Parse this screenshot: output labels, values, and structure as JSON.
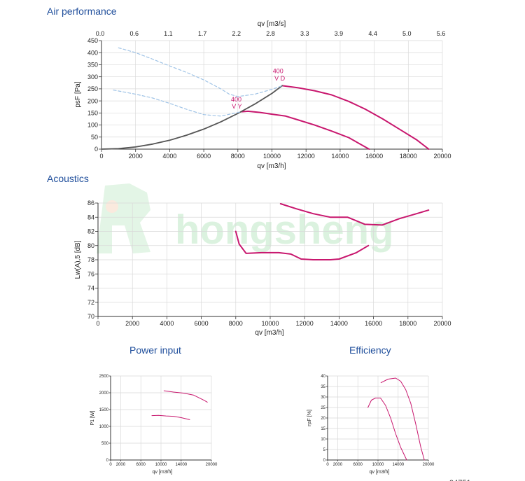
{
  "sections": {
    "air": "Air performance",
    "acoustics": "Acoustics",
    "power": "Power input",
    "efficiency": "Efficiency"
  },
  "colors": {
    "curve": "#c8176e",
    "system": "#555555",
    "dashed": "#9fc3e6",
    "grid": "#d9d9d9",
    "title": "#1f4e9b",
    "watermark": "#bfe8c5"
  },
  "watermark": "hongsheng",
  "footer_partial": "94751",
  "chart_data": [
    {
      "id": "air",
      "type": "line",
      "title": "Air performance",
      "xlabel": "qv [m3/h]",
      "ylabel": "psF [Pa]",
      "x2label": "qv [m3/s]",
      "xlim": [
        0,
        20000
      ],
      "ylim": [
        0,
        450
      ],
      "xticks": [
        0,
        2000,
        4000,
        6000,
        8000,
        10000,
        12000,
        14000,
        16000,
        18000,
        20000
      ],
      "yticks": [
        0,
        50,
        100,
        150,
        200,
        250,
        300,
        350,
        400,
        450
      ],
      "x2ticks": [
        "0.0",
        "0.6",
        "1.1",
        "1.7",
        "2.2",
        "2.8",
        "3.3",
        "3.9",
        "4.4",
        "5.0",
        "5.6"
      ],
      "grid": true,
      "annotations": [
        {
          "text": "400",
          "x": 10050,
          "y": 315
        },
        {
          "text": "V D",
          "x": 10150,
          "y": 285
        },
        {
          "text": "400",
          "x": 7600,
          "y": 198
        },
        {
          "text": "V Y",
          "x": 7650,
          "y": 168
        }
      ],
      "series": [
        {
          "id": "vd",
          "style": "solid",
          "x": [
            10600,
            11500,
            12500,
            13500,
            14500,
            15500,
            16500,
            17500,
            18500,
            19200
          ],
          "y": [
            263,
            255,
            242,
            225,
            198,
            165,
            125,
            82,
            38,
            0
          ]
        },
        {
          "id": "vy",
          "style": "solid",
          "x": [
            8200,
            8600,
            9300,
            10000,
            10800,
            11500,
            12500,
            13500,
            14500,
            15700
          ],
          "y": [
            155,
            157,
            152,
            145,
            137,
            122,
            100,
            75,
            48,
            0
          ]
        },
        {
          "id": "system",
          "style": "system",
          "x": [
            0,
            1000,
            2000,
            3000,
            4000,
            5000,
            6000,
            7000,
            8000,
            9000,
            10000,
            10600
          ],
          "y": [
            0,
            2,
            9,
            21,
            37,
            58,
            83,
            113,
            148,
            187,
            231,
            263
          ]
        },
        {
          "id": "d1",
          "style": "dashed",
          "x": [
            1000,
            2000,
            3000,
            4000,
            5000,
            6000,
            7000,
            7500,
            8000,
            9000,
            10000,
            10600
          ],
          "y": [
            420,
            400,
            373,
            345,
            318,
            287,
            250,
            228,
            218,
            228,
            248,
            263
          ]
        },
        {
          "id": "d2",
          "style": "dashed",
          "x": [
            700,
            2000,
            3000,
            4000,
            5000,
            6000,
            7000,
            8200
          ],
          "y": [
            245,
            228,
            212,
            190,
            165,
            143,
            137,
            155
          ]
        }
      ]
    },
    {
      "id": "acoustics",
      "type": "line",
      "title": "Acoustics",
      "xlabel": "qv [m3/h]",
      "ylabel": "Lw(A),5 [dB]",
      "xlim": [
        0,
        20000
      ],
      "ylim": [
        70,
        86
      ],
      "xticks": [
        0,
        2000,
        4000,
        6000,
        8000,
        10000,
        12000,
        14000,
        16000,
        18000,
        20000
      ],
      "yticks": [
        70,
        72,
        74,
        76,
        78,
        80,
        82,
        84,
        86
      ],
      "grid": true,
      "series": [
        {
          "id": "upper",
          "style": "solid",
          "x": [
            10600,
            11500,
            12500,
            13500,
            14500,
            15500,
            16500,
            17500,
            18500,
            19200
          ],
          "y": [
            85.9,
            85.2,
            84.5,
            84,
            84,
            83,
            82.9,
            83.8,
            84.5,
            85
          ]
        },
        {
          "id": "lower",
          "style": "solid",
          "x": [
            8000,
            8200,
            8600,
            9500,
            10500,
            11200,
            11800,
            12500,
            13500,
            14000,
            15000,
            15700
          ],
          "y": [
            82,
            80.2,
            78.9,
            79,
            79,
            78.8,
            78.1,
            78,
            78,
            78.1,
            79,
            80
          ]
        }
      ]
    },
    {
      "id": "power",
      "type": "line",
      "title": "Power input",
      "xlabel": "qv [m3/h]",
      "ylabel": "P1 [W]",
      "xlim": [
        0,
        20000
      ],
      "ylim": [
        0,
        2500
      ],
      "xticks": [
        0,
        2000,
        6000,
        10000,
        14000,
        20000
      ],
      "yticks": [
        0,
        500,
        1000,
        1500,
        2000,
        2500
      ],
      "grid": true,
      "series": [
        {
          "id": "upper",
          "style": "solid",
          "x": [
            10600,
            12500,
            14500,
            16500,
            18500,
            19200
          ],
          "y": [
            2060,
            2020,
            1990,
            1930,
            1780,
            1720
          ]
        },
        {
          "id": "lower",
          "style": "solid",
          "x": [
            8200,
            9500,
            11000,
            12500,
            14000,
            15700
          ],
          "y": [
            1320,
            1330,
            1310,
            1300,
            1260,
            1200
          ]
        }
      ]
    },
    {
      "id": "efficiency",
      "type": "line",
      "title": "Efficiency",
      "xlabel": "qv [m3/h]",
      "ylabel": "ηsF [%]",
      "xlim": [
        0,
        20000
      ],
      "ylim": [
        0,
        40
      ],
      "xticks": [
        0,
        2000,
        6000,
        10000,
        14000,
        20000
      ],
      "yticks": [
        0,
        5,
        10,
        15,
        20,
        25,
        30,
        35,
        40
      ],
      "grid": true,
      "series": [
        {
          "id": "upper",
          "style": "solid",
          "x": [
            10600,
            12000,
            13500,
            14500,
            15500,
            16500,
            17500,
            18500,
            19200
          ],
          "y": [
            36.8,
            38.5,
            39,
            37.5,
            33.5,
            27,
            17,
            6,
            0
          ]
        },
        {
          "id": "lower",
          "style": "solid",
          "x": [
            8000,
            8700,
            9500,
            10500,
            11500,
            12500,
            13500,
            14500,
            15700
          ],
          "y": [
            25,
            28.5,
            29.5,
            29.5,
            26,
            20,
            12.5,
            6,
            0
          ]
        }
      ]
    }
  ]
}
